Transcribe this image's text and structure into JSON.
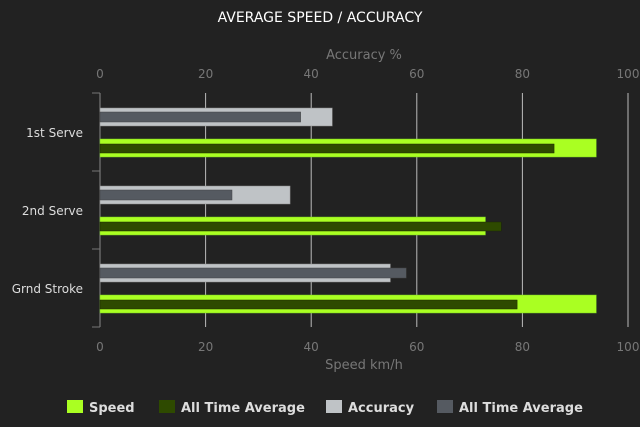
{
  "chart_data": {
    "type": "bar",
    "orientation": "horizontal",
    "title": "AVERAGE SPEED / ACCURACY",
    "categories": [
      "1st Serve",
      "2nd Serve",
      "Grnd Stroke"
    ],
    "x_top_label": "Accuracy %",
    "x_bottom_label": "Speed km/h",
    "xlim": [
      0,
      100
    ],
    "ticks": [
      "0",
      "20",
      "40",
      "60",
      "80",
      "100"
    ],
    "grid": true,
    "legend_position": "bottom",
    "series": [
      {
        "name": "Speed",
        "axis": "bottom",
        "color": "#aaff22",
        "values": [
          94,
          73,
          94
        ]
      },
      {
        "name": "All Time Average",
        "axis": "bottom",
        "color": "#2e4a00",
        "values": [
          86,
          76,
          79
        ]
      },
      {
        "name": "Accuracy",
        "axis": "top",
        "color": "#bfc3c6",
        "values": [
          44,
          36,
          55
        ]
      },
      {
        "name": "All Time Average",
        "axis": "top",
        "color": "#555a61",
        "values": [
          38,
          25,
          58
        ]
      }
    ]
  }
}
